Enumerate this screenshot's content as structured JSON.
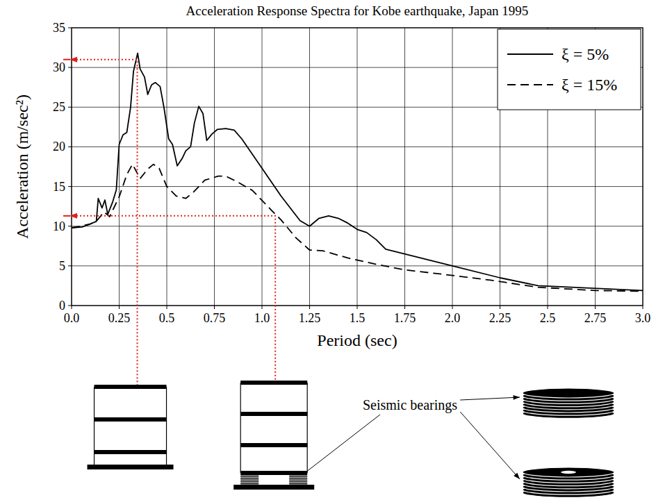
{
  "chart_data": {
    "type": "line",
    "title": "Acceleration Response Spectra for Kobe earthquake, Japan 1995",
    "x_label": "Period (sec)",
    "y_label": "Acceleration (m/sec²)",
    "xlim": [
      0,
      3.0
    ],
    "ylim": [
      0,
      35
    ],
    "xticks": [
      {
        "value": 0,
        "label": "0.0"
      },
      0.25,
      0.5,
      0.75,
      {
        "value": 1,
        "label": "1.0"
      },
      1.25,
      1.5,
      1.75,
      {
        "value": 2,
        "label": "2.0"
      },
      2.25,
      2.5,
      2.75,
      {
        "value": 3,
        "label": "3.0"
      }
    ],
    "yticks": [
      0,
      5,
      10,
      15,
      20,
      25,
      30,
      35
    ],
    "grid": true,
    "legend": "upper right",
    "series": [
      {
        "name": "ξ = 5%",
        "color": "#000000",
        "line_style": "solid",
        "x": [
          0,
          0.055,
          0.1,
          0.13,
          0.14,
          0.16,
          0.175,
          0.19,
          0.215,
          0.235,
          0.25,
          0.27,
          0.29,
          0.31,
          0.325,
          0.347,
          0.36,
          0.383,
          0.4,
          0.42,
          0.44,
          0.465,
          0.485,
          0.51,
          0.53,
          0.555,
          0.58,
          0.6,
          0.625,
          0.645,
          0.668,
          0.69,
          0.71,
          0.737,
          0.766,
          0.81,
          0.854,
          0.894,
          1.0,
          1.1,
          1.2,
          1.25,
          1.3,
          1.35,
          1.4,
          1.45,
          1.5,
          1.55,
          1.6,
          1.65,
          2.0,
          2.25,
          2.45,
          3.0
        ],
        "values": [
          9.8,
          9.9,
          10.3,
          10.6,
          13.5,
          12.3,
          13.3,
          11.5,
          13,
          14.6,
          20.3,
          21.5,
          21.8,
          25,
          29.5,
          31.8,
          29.8,
          28.8,
          26.6,
          27.8,
          28.1,
          27.6,
          25,
          21,
          20.3,
          17.6,
          18.5,
          19.5,
          20,
          23,
          25.1,
          24.2,
          20.8,
          21.6,
          22.2,
          22.3,
          22.1,
          21,
          17.3,
          13.8,
          10.7,
          10.0,
          11,
          11.3,
          11,
          10.4,
          9.6,
          9.2,
          8.3,
          7.1,
          5.0,
          3.5,
          2.5,
          1.9
        ]
      },
      {
        "name": "ξ = 15%",
        "color": "#000000",
        "line_style": "dashed",
        "x": [
          0,
          0.05,
          0.1,
          0.13,
          0.17,
          0.2,
          0.25,
          0.29,
          0.32,
          0.36,
          0.4,
          0.43,
          0.46,
          0.5,
          0.55,
          0.6,
          0.64,
          0.7,
          0.77,
          0.81,
          0.87,
          0.95,
          1.05,
          1.1,
          1.18,
          1.25,
          1.32,
          1.45,
          1.6,
          1.75,
          2.0,
          2.2,
          2.45,
          2.75,
          3.0
        ],
        "values": [
          9.8,
          10,
          10.3,
          10.6,
          11.8,
          11.2,
          13.7,
          16.5,
          17.8,
          16,
          17.2,
          17.8,
          17.3,
          15,
          13.8,
          13.5,
          14.3,
          15.8,
          16.3,
          16.3,
          15.6,
          14.5,
          12.0,
          10.8,
          8.5,
          7,
          6.9,
          6,
          5.2,
          4.5,
          3.8,
          3.2,
          2.3,
          1.9,
          1.8
        ]
      }
    ],
    "markers": [
      {
        "x": 0.345,
        "y": 31
      },
      {
        "x": 1.07,
        "y": 11.3
      }
    ],
    "annotations": [
      "Seismic bearings"
    ]
  }
}
